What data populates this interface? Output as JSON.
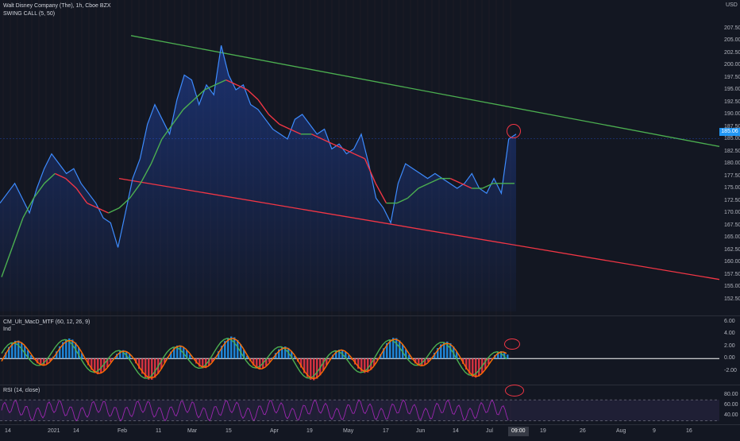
{
  "header": {
    "main_title": "Walt Disney Company (The), 1h, Cboe BZX",
    "indicator": "SWING CALL (5, 50)",
    "macd_title": "CM_Ult_MacD_MTF (60, 12, 26, 9)",
    "macd_sub": "Ind",
    "rsi_title": "RSI (14, close)",
    "currency": "USD"
  },
  "price_tag": "185.06",
  "time_tag": "09:00",
  "chart_data": [
    {
      "type": "line",
      "title": "Walt Disney Company (The), 1h, Cboe BZX",
      "xlabel": "",
      "ylabel": "",
      "ylim": [
        150,
        210
      ],
      "x_tick_labels": [
        "14",
        "2021",
        "14",
        "Feb",
        "11",
        "Mar",
        "15",
        "Apr",
        "19",
        "May",
        "17",
        "Jun",
        "14",
        "Jul",
        "19",
        "26",
        "Aug",
        "9",
        "16"
      ],
      "y_tick_labels": [
        "152.50",
        "155.00",
        "157.50",
        "160.00",
        "162.50",
        "165.00",
        "167.50",
        "170.00",
        "172.50",
        "175.00",
        "177.50",
        "180.00",
        "182.50",
        "185.00",
        "187.50",
        "190.00",
        "192.50",
        "195.00",
        "197.50",
        "200.00",
        "202.50",
        "205.00",
        "207.50"
      ],
      "series": [
        {
          "values": [
            172,
            174,
            176,
            173,
            170,
            175,
            179,
            182,
            180,
            178,
            179,
            176,
            174,
            172,
            169,
            168,
            163,
            170,
            177,
            181,
            188,
            192,
            189,
            186,
            193,
            198,
            197,
            192,
            196,
            194,
            204,
            198,
            195,
            196,
            192,
            191,
            189,
            187,
            186,
            185,
            189,
            190,
            188,
            186,
            187,
            183,
            184,
            182,
            183,
            186,
            180,
            173,
            171,
            168,
            176,
            180,
            179,
            178,
            177,
            178,
            177,
            176,
            175,
            176,
            178,
            175,
            174,
            177,
            174,
            185,
            186
          ]
        },
        {
          "values": [
            157,
            163,
            169,
            173,
            176,
            178,
            177,
            175,
            172,
            171,
            170,
            171,
            173,
            176,
            180,
            185,
            188,
            191,
            193,
            195,
            196,
            197,
            196,
            195,
            193,
            190,
            188,
            187,
            186,
            186,
            185,
            184,
            183,
            182,
            181,
            176,
            172,
            172,
            173,
            175,
            176,
            177,
            177,
            176,
            175,
            175,
            176,
            176,
            176
          ]
        }
      ],
      "trendlines": [
        {
          "from": [
            0,
            206.0
          ],
          "to": [
            1,
            183.5
          ],
          "color": "#4caf50"
        },
        {
          "from": [
            0,
            177.0
          ],
          "to": [
            1,
            156.5
          ],
          "color": "#f23645"
        }
      ],
      "last_price": 185.06
    },
    {
      "type": "line",
      "title": "CM_Ult_MacD_MTF (60, 12, 26, 9)",
      "ylim": [
        -4,
        6
      ],
      "y_tick_labels": [
        "6.00",
        "4.00",
        "2.00",
        "0.00",
        "-2.00"
      ]
    },
    {
      "type": "line",
      "title": "RSI (14, close)",
      "ylim": [
        25,
        90
      ],
      "y_tick_labels": [
        "80.00",
        "60.00",
        "40.00"
      ],
      "bands": [
        70,
        30
      ]
    }
  ],
  "colors": {
    "background": "#131722",
    "price_line": "#2962ff",
    "area": "#1e3a5f",
    "up": "#4caf50",
    "down": "#f23645",
    "rsi": "#9c27b0"
  }
}
